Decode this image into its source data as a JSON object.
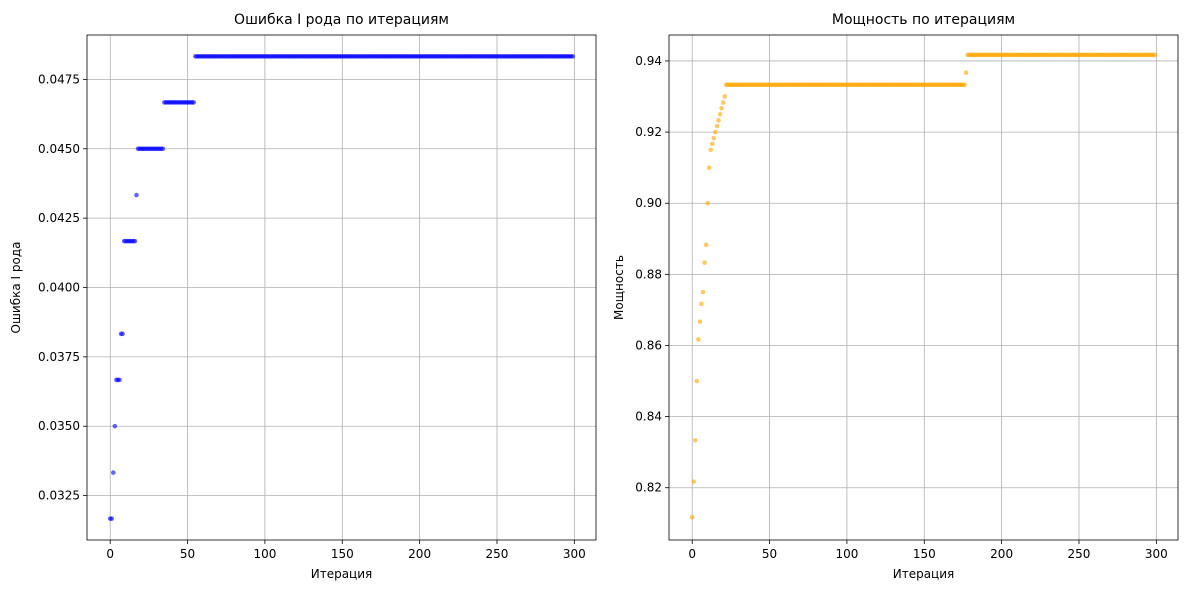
{
  "chart_data": [
    {
      "type": "scatter",
      "title": "Ошибка I рода по итерациям",
      "xlabel": "Итерация",
      "ylabel": "Ошибка I рода",
      "xlim": [
        -15,
        314
      ],
      "ylim": [
        0.0309,
        0.0491
      ],
      "xticks": [
        0,
        50,
        100,
        150,
        200,
        250,
        300
      ],
      "yticks": [
        0.0325,
        0.035,
        0.0375,
        0.04,
        0.0425,
        0.045,
        0.0475
      ],
      "ytick_labels": [
        "0.0325",
        "0.0350",
        "0.0375",
        "0.0400",
        "0.0425",
        "0.0450",
        "0.0475"
      ],
      "grid": true,
      "color": "#0000ff",
      "segments": [
        {
          "x_start": 0,
          "x_end": 1,
          "y": 0.03167
        },
        {
          "x_start": 2,
          "x_end": 2,
          "y": 0.03333
        },
        {
          "x_start": 3,
          "x_end": 3,
          "y": 0.035
        },
        {
          "x_start": 4,
          "x_end": 6,
          "y": 0.03667
        },
        {
          "x_start": 7,
          "x_end": 8,
          "y": 0.03833
        },
        {
          "x_start": 9,
          "x_end": 16,
          "y": 0.04167
        },
        {
          "x_start": 17,
          "x_end": 17,
          "y": 0.04333
        },
        {
          "x_start": 18,
          "x_end": 34,
          "y": 0.045
        },
        {
          "x_start": 35,
          "x_end": 54,
          "y": 0.04667
        },
        {
          "x_start": 55,
          "x_end": 299,
          "y": 0.04833
        }
      ]
    },
    {
      "type": "scatter",
      "title": "Мощность по итерациям",
      "xlabel": "Итерация",
      "ylabel": "Мощность",
      "xlim": [
        -15,
        314
      ],
      "ylim": [
        0.8053,
        0.9473
      ],
      "xticks": [
        0,
        50,
        100,
        150,
        200,
        250,
        300
      ],
      "yticks": [
        0.82,
        0.84,
        0.86,
        0.88,
        0.9,
        0.92,
        0.94
      ],
      "ytick_labels": [
        "0.82",
        "0.84",
        "0.86",
        "0.88",
        "0.90",
        "0.92",
        "0.94"
      ],
      "grid": true,
      "color": "#ffa500",
      "segments": [
        {
          "x_start": 0,
          "x_end": 0,
          "y": 0.8117
        },
        {
          "x_start": 1,
          "x_end": 1,
          "y": 0.8217
        },
        {
          "x_start": 2,
          "x_end": 2,
          "y": 0.8333
        },
        {
          "x_start": 3,
          "x_end": 3,
          "y": 0.85
        },
        {
          "x_start": 4,
          "x_end": 4,
          "y": 0.8617
        },
        {
          "x_start": 5,
          "x_end": 5,
          "y": 0.8667
        },
        {
          "x_start": 6,
          "x_end": 6,
          "y": 0.8717
        },
        {
          "x_start": 7,
          "x_end": 7,
          "y": 0.875
        },
        {
          "x_start": 8,
          "x_end": 8,
          "y": 0.8833
        },
        {
          "x_start": 9,
          "x_end": 9,
          "y": 0.8883
        },
        {
          "x_start": 10,
          "x_end": 10,
          "y": 0.9
        },
        {
          "x_start": 11,
          "x_end": 11,
          "y": 0.91
        },
        {
          "x_start": 12,
          "x_end": 12,
          "y": 0.915
        },
        {
          "x_start": 13,
          "x_end": 13,
          "y": 0.9167
        },
        {
          "x_start": 14,
          "x_end": 14,
          "y": 0.9183
        },
        {
          "x_start": 15,
          "x_end": 15,
          "y": 0.92
        },
        {
          "x_start": 16,
          "x_end": 16,
          "y": 0.9217
        },
        {
          "x_start": 17,
          "x_end": 17,
          "y": 0.9233
        },
        {
          "x_start": 18,
          "x_end": 18,
          "y": 0.925
        },
        {
          "x_start": 19,
          "x_end": 19,
          "y": 0.9267
        },
        {
          "x_start": 20,
          "x_end": 20,
          "y": 0.9283
        },
        {
          "x_start": 21,
          "x_end": 21,
          "y": 0.93
        },
        {
          "x_start": 22,
          "x_end": 176,
          "y": 0.9333
        },
        {
          "x_start": 177,
          "x_end": 177,
          "y": 0.9367
        },
        {
          "x_start": 178,
          "x_end": 299,
          "y": 0.9417
        }
      ]
    }
  ]
}
